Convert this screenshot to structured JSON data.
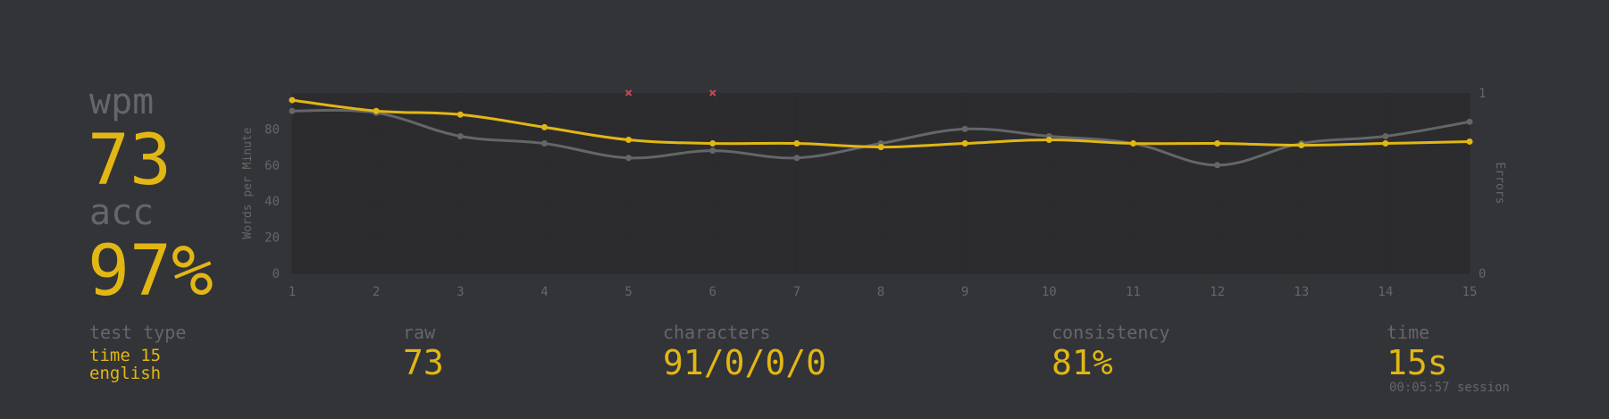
{
  "stats": {
    "wpm_label": "wpm",
    "wpm_value": "73",
    "acc_label": "acc",
    "acc_value": "97%"
  },
  "bottom": {
    "test_type_label": "test type",
    "test_type_line1": "time 15",
    "test_type_line2": "english",
    "raw_label": "raw",
    "raw_value": "73",
    "characters_label": "characters",
    "characters_value": "91/0/0/0",
    "consistency_label": "consistency",
    "consistency_value": "81%",
    "time_label": "time",
    "time_value": "15s",
    "session_note": "00:05:57 session"
  },
  "colors": {
    "background": "#323437",
    "plot_background": "#2c2c2e",
    "accent": "#e2b714",
    "raw_line": "#646669",
    "muted_text": "#646669",
    "error_marker": "#ca4754"
  },
  "chart_data": {
    "type": "line",
    "x": [
      1,
      2,
      3,
      4,
      5,
      6,
      7,
      8,
      9,
      10,
      11,
      12,
      13,
      14,
      15
    ],
    "ylabel": "Words per Minute",
    "y2label": "Errors",
    "ylim": [
      0,
      100
    ],
    "y_ticks": [
      0,
      20,
      40,
      60,
      80
    ],
    "y2lim": [
      0,
      1
    ],
    "y2_ticks": [
      0,
      1
    ],
    "grid": true,
    "series": [
      {
        "key": "wpm",
        "color": "#e2b714",
        "values": [
          96,
          90,
          88,
          81,
          74,
          72,
          72,
          70,
          72,
          74,
          72,
          72,
          71,
          72,
          73
        ]
      },
      {
        "key": "raw",
        "color": "#646669",
        "values": [
          90,
          89,
          76,
          72,
          64,
          68,
          64,
          72,
          80,
          76,
          72,
          60,
          72,
          76,
          84
        ]
      }
    ],
    "errors": [
      {
        "x": 5,
        "count": 1
      },
      {
        "x": 6,
        "count": 1
      }
    ]
  }
}
